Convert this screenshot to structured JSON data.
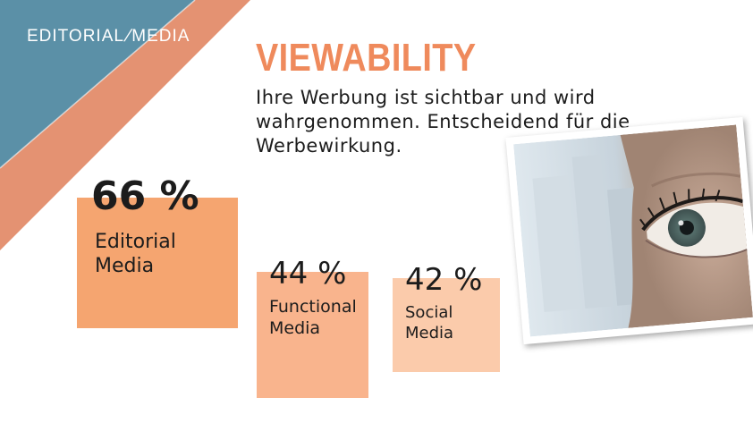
{
  "brand": {
    "part1": "EDITORIAL",
    "part2": "MEDIA"
  },
  "header": {
    "title": "VIEWABILITY",
    "subtitle": "Ihre Werbung ist sichtbar und wird wahrgenommen. Entscheidend für die Werbewirkung."
  },
  "colors": {
    "accent": "#ef8a5c",
    "bar_editorial": "#f5a570",
    "bar_functional": "#f9b48d",
    "bar_social": "#fbcbab",
    "corner_blue": "#5f95ac",
    "corner_orange": "#e49272"
  },
  "chart_data": {
    "type": "bar",
    "categories": [
      "Editorial Media",
      "Functional Media",
      "Social Media"
    ],
    "values": [
      66,
      44,
      42
    ],
    "value_labels": [
      "66 %",
      "44 %",
      "42 %"
    ],
    "title": "VIEWABILITY"
  },
  "image": {
    "subject": "eye-photo-icon"
  }
}
